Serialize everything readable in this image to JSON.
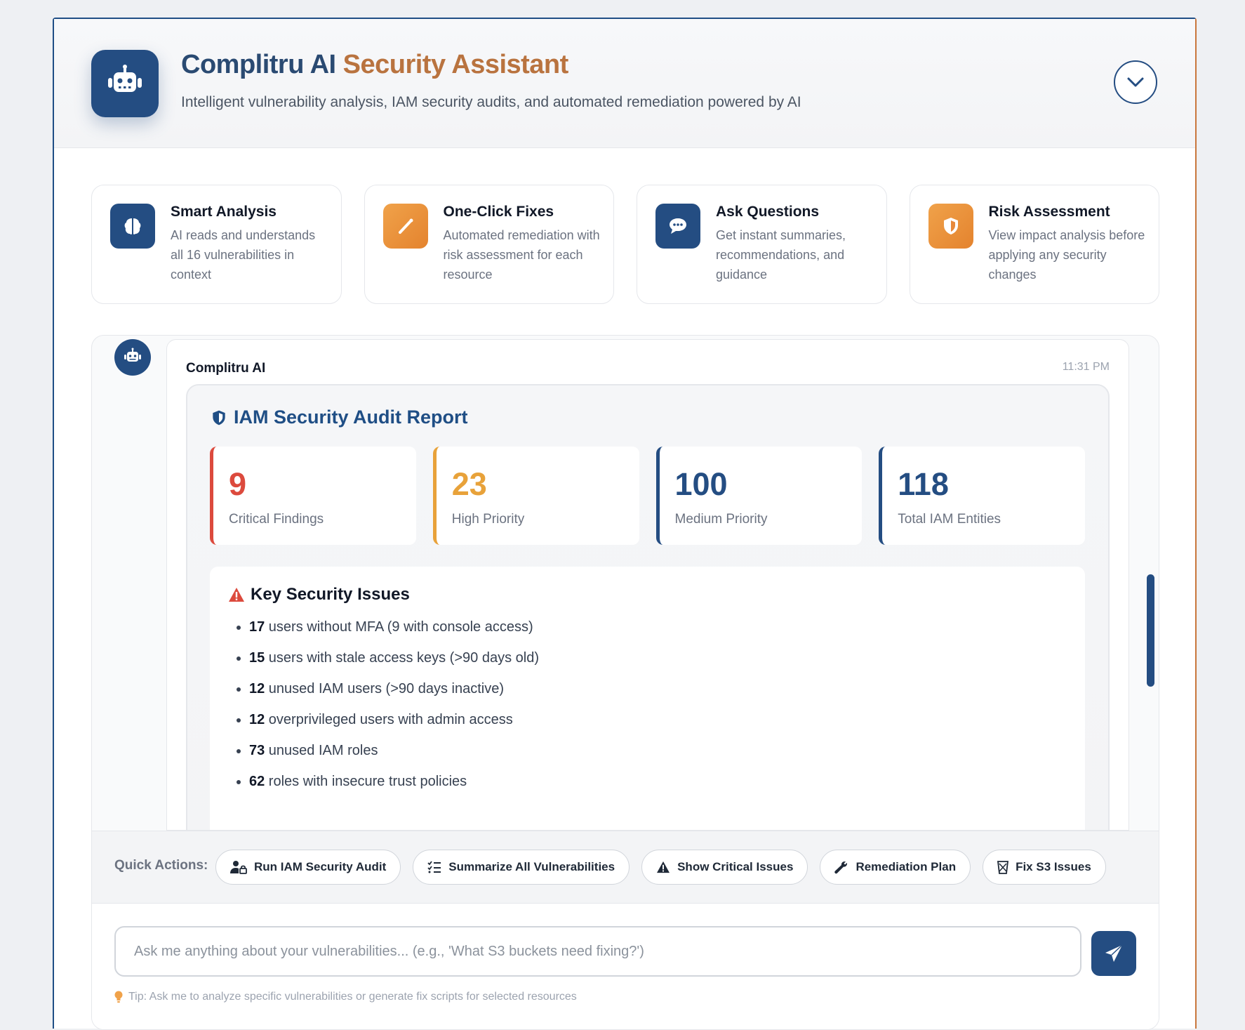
{
  "header": {
    "title_part1": "Complitru AI",
    "title_part2": "Security Assistant",
    "subtitle": "Intelligent vulnerability analysis, IAM security audits, and automated remediation powered by AI",
    "logo_icon": "robot-icon",
    "collapse_icon": "chevron-down-icon"
  },
  "features": [
    {
      "title": "Smart Analysis",
      "desc": "AI reads and understands all 16 vulnerabilities in context",
      "icon": "brain-icon",
      "color": "#244d82"
    },
    {
      "title": "One-Click Fixes",
      "desc": "Automated remediation with risk assessment for each resource",
      "icon": "magic-wand-icon",
      "color": "#e8893a"
    },
    {
      "title": "Ask Questions",
      "desc": "Get instant summaries, recommendations, and guidance",
      "icon": "chat-bubble-icon",
      "color": "#244d82"
    },
    {
      "title": "Risk Assessment",
      "desc": "View impact analysis before applying any security changes",
      "icon": "shield-icon",
      "color": "#e8893a"
    }
  ],
  "message": {
    "sender": "Complitru AI",
    "time": "11:31 PM",
    "report_title": "IAM Security Audit Report",
    "stats": [
      {
        "value": "9",
        "label": "Critical Findings",
        "color": "#dc4a3d"
      },
      {
        "value": "23",
        "label": "High Priority",
        "color": "#e8a23a"
      },
      {
        "value": "100",
        "label": "Medium Priority",
        "color": "#244d82"
      },
      {
        "value": "118",
        "label": "Total IAM Entities",
        "color": "#244d82"
      }
    ],
    "issues_title": "Key Security Issues",
    "issues": [
      {
        "count": "17",
        "text": " users without MFA (9 with console access)"
      },
      {
        "count": "15",
        "text": " users with stale access keys (>90 days old)"
      },
      {
        "count": "12",
        "text": " unused IAM users (>90 days inactive)"
      },
      {
        "count": "12",
        "text": " overprivileged users with admin access"
      },
      {
        "count": "73",
        "text": " unused IAM roles"
      },
      {
        "count": "62",
        "text": " roles with insecure trust policies"
      }
    ]
  },
  "quick_actions": {
    "label": "Quick Actions:",
    "buttons": [
      {
        "label": "Run IAM Security Audit",
        "icon": "user-lock-icon"
      },
      {
        "label": "Summarize All Vulnerabilities",
        "icon": "list-check-icon"
      },
      {
        "label": "Show Critical Issues",
        "icon": "warning-icon"
      },
      {
        "label": "Remediation Plan",
        "icon": "wrench-icon"
      },
      {
        "label": "Fix S3 Issues",
        "icon": "bucket-icon"
      }
    ]
  },
  "input": {
    "placeholder": "Ask me anything about your vulnerabilities... (e.g., 'What S3 buckets need fixing?')",
    "value": "",
    "send_icon": "paper-plane-icon"
  },
  "tip": "Tip: Ask me to analyze specific vulnerabilities or generate fix scripts for selected resources"
}
